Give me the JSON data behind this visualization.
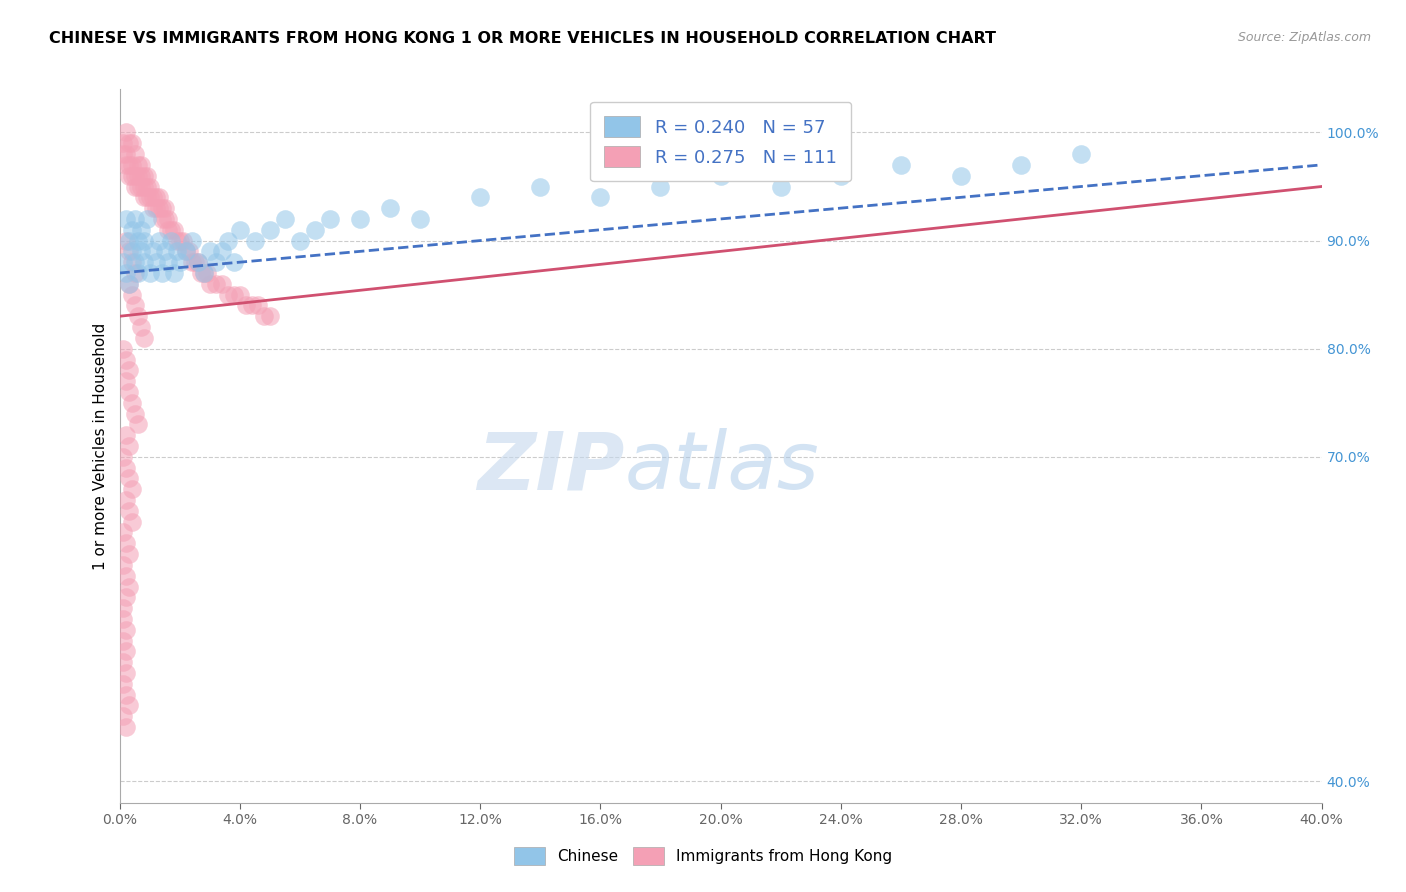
{
  "title": "CHINESE VS IMMIGRANTS FROM HONG KONG 1 OR MORE VEHICLES IN HOUSEHOLD CORRELATION CHART",
  "source": "Source: ZipAtlas.com",
  "ylabel": "1 or more Vehicles in Household",
  "ytick_values": [
    0.4,
    0.7,
    0.8,
    0.9,
    1.0
  ],
  "xmin": 0.0,
  "xmax": 0.4,
  "ymin": 0.38,
  "ymax": 1.04,
  "R_chinese": 0.24,
  "N_chinese": 57,
  "R_hk": 0.275,
  "N_hk": 111,
  "color_chinese": "#92C5E8",
  "color_hk": "#F4A0B5",
  "line_color_chinese": "#4472C4",
  "line_color_hk": "#D05070",
  "legend_label_chinese": "Chinese",
  "legend_label_hk": "Immigrants from Hong Kong",
  "watermark_zip": "ZIP",
  "watermark_atlas": "atlas",
  "chinese_x": [
    0.001,
    0.002,
    0.002,
    0.003,
    0.003,
    0.004,
    0.004,
    0.005,
    0.005,
    0.006,
    0.006,
    0.007,
    0.007,
    0.008,
    0.008,
    0.009,
    0.01,
    0.011,
    0.012,
    0.013,
    0.014,
    0.015,
    0.016,
    0.017,
    0.018,
    0.019,
    0.02,
    0.022,
    0.024,
    0.026,
    0.028,
    0.03,
    0.032,
    0.034,
    0.036,
    0.038,
    0.04,
    0.045,
    0.05,
    0.055,
    0.06,
    0.065,
    0.07,
    0.08,
    0.09,
    0.1,
    0.12,
    0.14,
    0.16,
    0.18,
    0.2,
    0.22,
    0.24,
    0.26,
    0.28,
    0.3,
    0.32
  ],
  "chinese_y": [
    0.88,
    0.87,
    0.92,
    0.86,
    0.9,
    0.89,
    0.91,
    0.88,
    0.92,
    0.87,
    0.9,
    0.89,
    0.91,
    0.88,
    0.9,
    0.92,
    0.87,
    0.89,
    0.88,
    0.9,
    0.87,
    0.89,
    0.88,
    0.9,
    0.87,
    0.89,
    0.88,
    0.89,
    0.9,
    0.88,
    0.87,
    0.89,
    0.88,
    0.89,
    0.9,
    0.88,
    0.91,
    0.9,
    0.91,
    0.92,
    0.9,
    0.91,
    0.92,
    0.92,
    0.93,
    0.92,
    0.94,
    0.95,
    0.94,
    0.95,
    0.96,
    0.95,
    0.96,
    0.97,
    0.96,
    0.97,
    0.98
  ],
  "hk_x": [
    0.001,
    0.001,
    0.002,
    0.002,
    0.002,
    0.003,
    0.003,
    0.003,
    0.004,
    0.004,
    0.004,
    0.005,
    0.005,
    0.005,
    0.006,
    0.006,
    0.006,
    0.007,
    0.007,
    0.007,
    0.008,
    0.008,
    0.008,
    0.009,
    0.009,
    0.009,
    0.01,
    0.01,
    0.011,
    0.011,
    0.012,
    0.012,
    0.013,
    0.013,
    0.014,
    0.014,
    0.015,
    0.015,
    0.016,
    0.016,
    0.017,
    0.018,
    0.019,
    0.02,
    0.021,
    0.022,
    0.023,
    0.024,
    0.025,
    0.026,
    0.027,
    0.028,
    0.029,
    0.03,
    0.032,
    0.034,
    0.036,
    0.038,
    0.04,
    0.042,
    0.044,
    0.046,
    0.048,
    0.05,
    0.002,
    0.003,
    0.004,
    0.005,
    0.003,
    0.004,
    0.005,
    0.006,
    0.007,
    0.008,
    0.001,
    0.002,
    0.003,
    0.002,
    0.003,
    0.004,
    0.005,
    0.006,
    0.002,
    0.003,
    0.001,
    0.002,
    0.003,
    0.004,
    0.002,
    0.003,
    0.004,
    0.001,
    0.002,
    0.003,
    0.001,
    0.002,
    0.003,
    0.002,
    0.001,
    0.2,
    0.001,
    0.002,
    0.001,
    0.002,
    0.001,
    0.002,
    0.001,
    0.002,
    0.003,
    0.001,
    0.002
  ],
  "hk_y": [
    0.98,
    0.99,
    0.97,
    0.98,
    1.0,
    0.96,
    0.97,
    0.99,
    0.96,
    0.97,
    0.99,
    0.95,
    0.96,
    0.98,
    0.95,
    0.96,
    0.97,
    0.95,
    0.96,
    0.97,
    0.94,
    0.95,
    0.96,
    0.94,
    0.95,
    0.96,
    0.94,
    0.95,
    0.93,
    0.94,
    0.93,
    0.94,
    0.93,
    0.94,
    0.92,
    0.93,
    0.92,
    0.93,
    0.91,
    0.92,
    0.91,
    0.91,
    0.9,
    0.9,
    0.9,
    0.89,
    0.89,
    0.88,
    0.88,
    0.88,
    0.87,
    0.87,
    0.87,
    0.86,
    0.86,
    0.86,
    0.85,
    0.85,
    0.85,
    0.84,
    0.84,
    0.84,
    0.83,
    0.83,
    0.9,
    0.89,
    0.88,
    0.87,
    0.86,
    0.85,
    0.84,
    0.83,
    0.82,
    0.81,
    0.8,
    0.79,
    0.78,
    0.77,
    0.76,
    0.75,
    0.74,
    0.73,
    0.72,
    0.71,
    0.7,
    0.69,
    0.68,
    0.67,
    0.66,
    0.65,
    0.64,
    0.63,
    0.62,
    0.61,
    0.6,
    0.59,
    0.58,
    0.57,
    0.56,
    1.0,
    0.55,
    0.54,
    0.53,
    0.52,
    0.51,
    0.5,
    0.49,
    0.48,
    0.47,
    0.46,
    0.45
  ]
}
